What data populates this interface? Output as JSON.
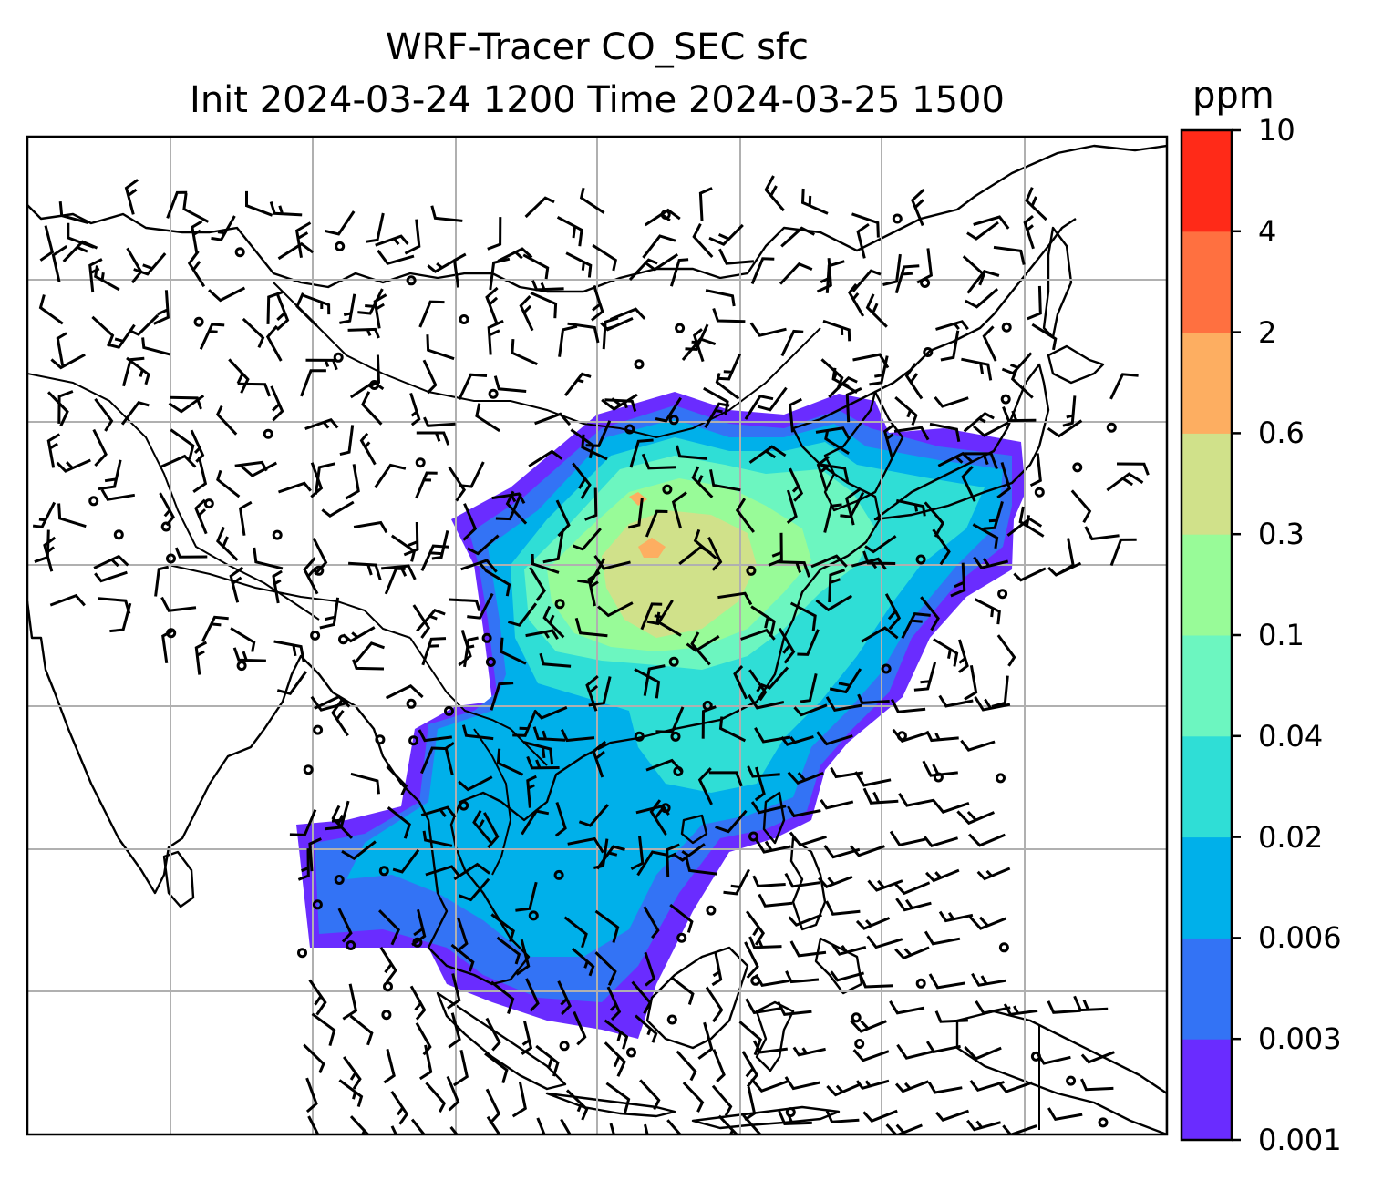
{
  "title": {
    "line1": "WRF-Tracer CO_SEC sfc",
    "line2": "Init 2024-03-24 1200 Time 2024-03-25 1500"
  },
  "colorbar": {
    "unit": "ppm",
    "ticks": [
      "0.001",
      "0.003",
      "0.006",
      "0.02",
      "0.04",
      "0.1",
      "0.3",
      "0.6",
      "2",
      "4",
      "10"
    ],
    "colors": [
      "#6a2cff",
      "#3373f5",
      "#00b0ea",
      "#2fded6",
      "#6cf6c0",
      "#98fb98",
      "#d0e18a",
      "#fdae61",
      "#ff7040",
      "#ff2a18"
    ]
  },
  "map": {
    "projection_grid": "on",
    "field": "CO_SEC surface concentration",
    "overlay": "wind barbs"
  }
}
